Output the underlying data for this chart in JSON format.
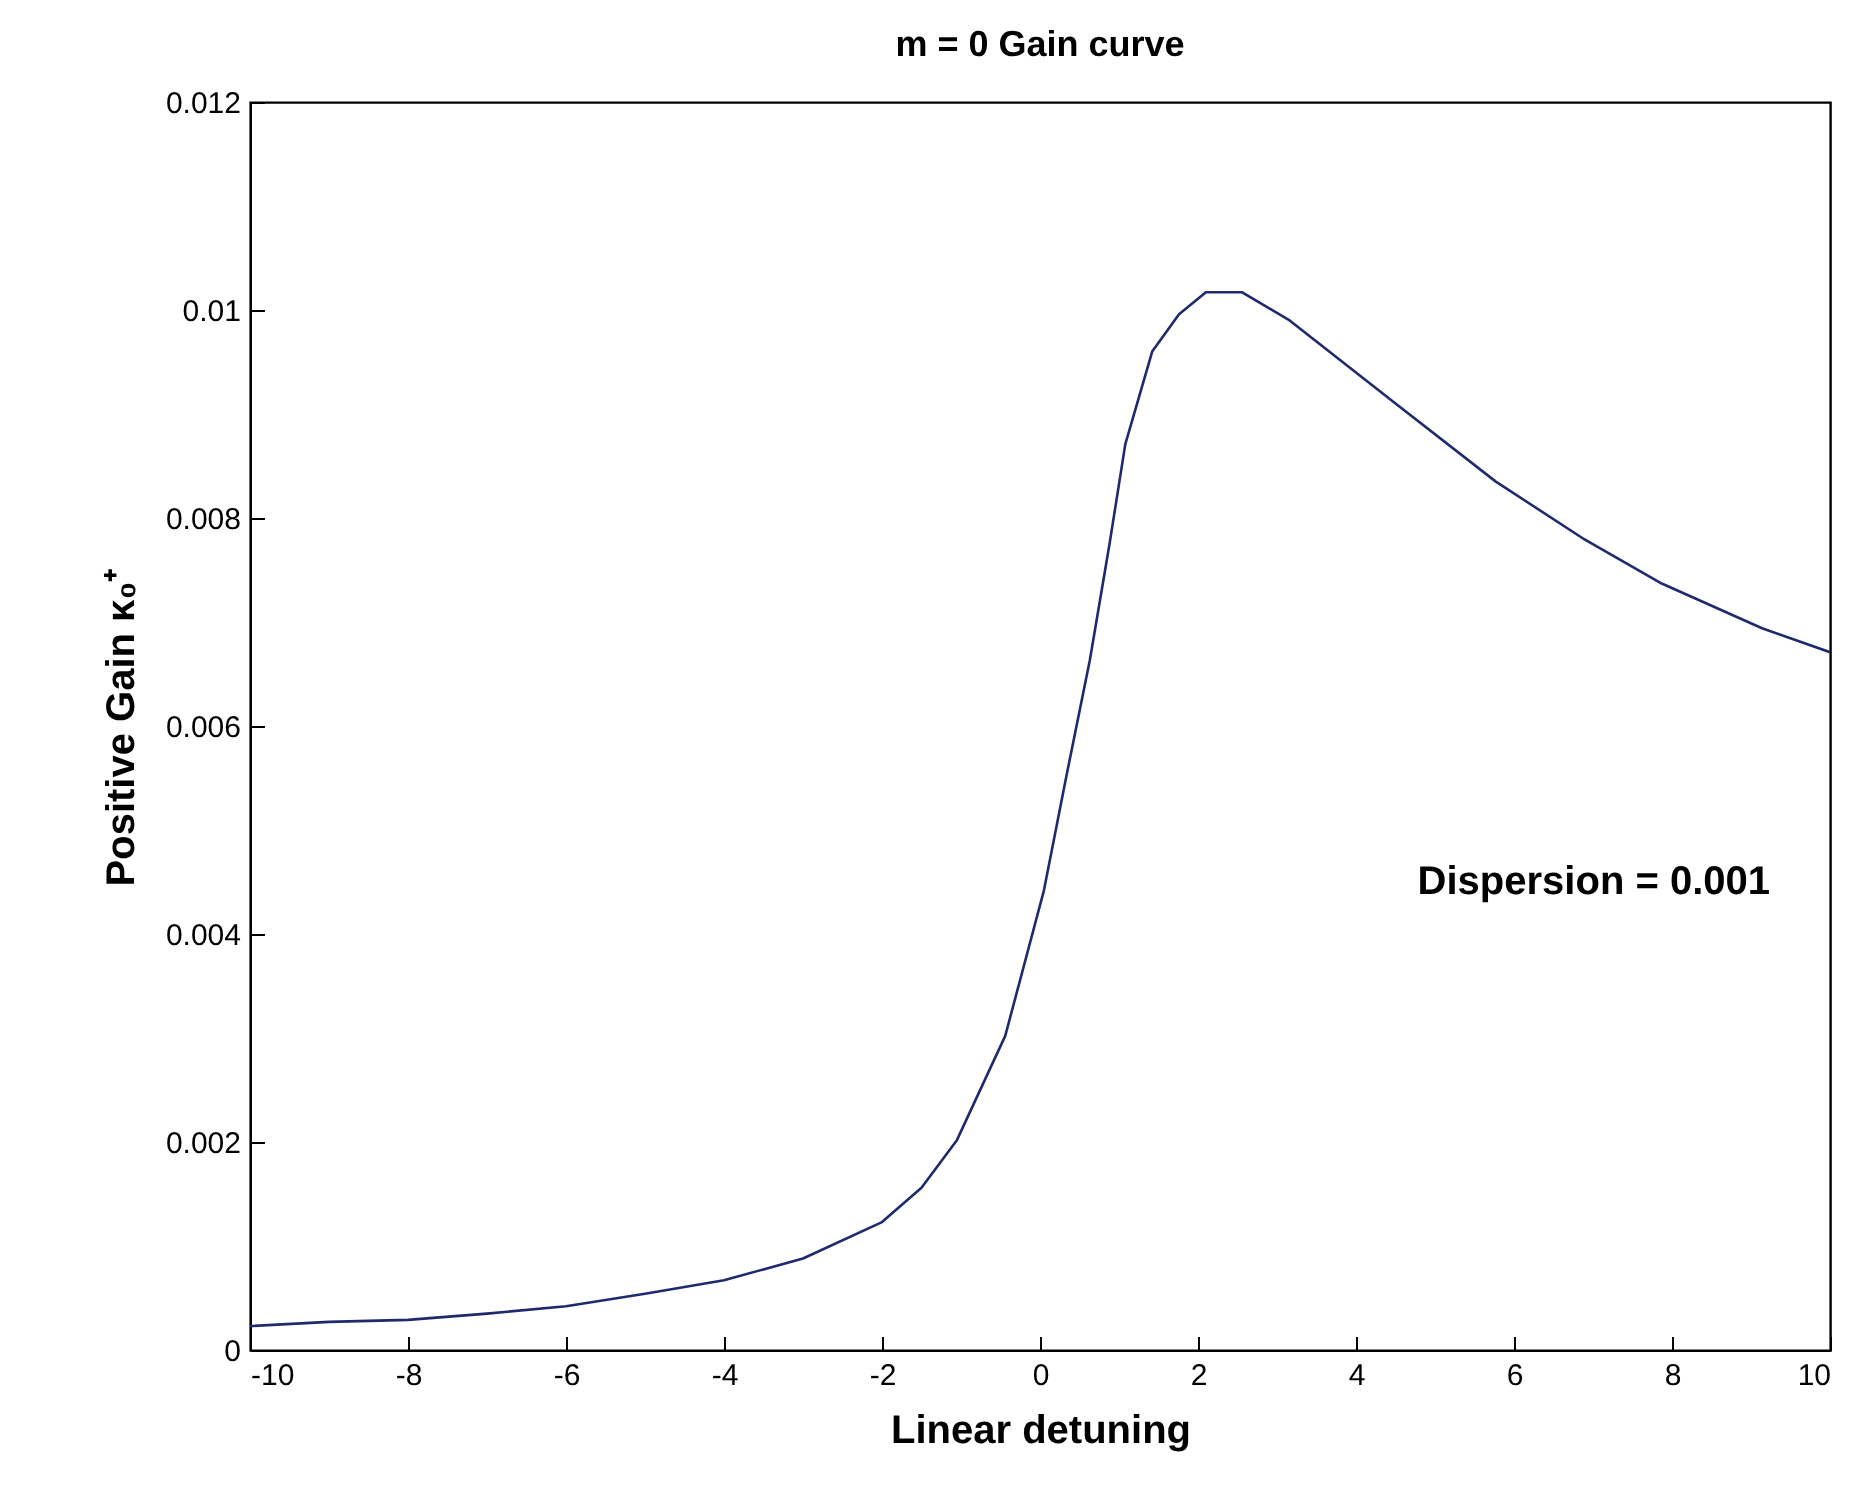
{
  "chart_data": {
    "type": "line",
    "title": "m = 0    Gain curve",
    "xlabel": "Linear detuning",
    "ylabel": "Positive Gain  κ₀⁺",
    "x": [
      -10,
      -9,
      -8,
      -7,
      -6,
      -5,
      -4,
      -3,
      -2,
      -1.5,
      -1.05,
      -0.44,
      0.05,
      0.34,
      0.63,
      0.88,
      1.08,
      1.42,
      1.76,
      2.1,
      2.56,
      3.16,
      4.5,
      5.77,
      6.86,
      7.87,
      9.14,
      10
    ],
    "series": [
      {
        "color": "#1f2a6e",
        "values": [
          0.00023,
          0.00027,
          0.00029,
          0.00035,
          0.00042,
          0.00054,
          0.00067,
          0.00088,
          0.00123,
          0.00156,
          0.00202,
          0.00302,
          0.00442,
          0.00554,
          0.00663,
          0.00775,
          0.00871,
          0.0096,
          0.00996,
          0.01017,
          0.01017,
          0.0099,
          0.0091,
          0.00835,
          0.00781,
          0.00737,
          0.00694,
          0.00671
        ]
      }
    ],
    "xlim": [
      -10,
      10
    ],
    "xticks": [
      -10,
      -8,
      -6,
      -4,
      -2,
      0,
      2,
      4,
      6,
      8,
      10
    ],
    "ylim": [
      0,
      0.012
    ],
    "yticks": [
      0,
      0.002,
      0.004,
      0.006,
      0.008,
      0.01,
      0.012
    ],
    "grid": false,
    "marker": "none",
    "line_style": "solid",
    "annotations": [
      "Dispersion = 0.001"
    ]
  }
}
